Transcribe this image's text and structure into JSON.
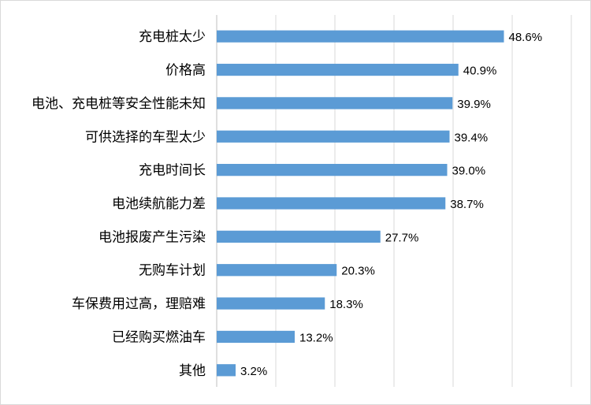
{
  "chart_data": {
    "type": "bar",
    "orientation": "horizontal",
    "categories": [
      "充电桩太少",
      "价格高",
      "电池、充电桩等安全性能未知",
      "可供选择的车型太少",
      "充电时间长",
      "电池续航能力差",
      "电池报废产生污染",
      "无购车计划",
      "车保费用过高，理赔难",
      "已经购买燃油车",
      "其他"
    ],
    "values": [
      48.6,
      40.9,
      39.9,
      39.4,
      39.0,
      38.7,
      27.7,
      20.3,
      18.3,
      13.2,
      3.2
    ],
    "data_labels": [
      "48.6%",
      "40.9%",
      "39.9%",
      "39.4%",
      "39.0%",
      "38.7%",
      "27.7%",
      "20.3%",
      "18.3%",
      "13.2%",
      "3.2%"
    ],
    "unit": "%",
    "xlim": [
      0,
      60
    ],
    "grid": true,
    "bar_color": "#5b9bd5",
    "title": "",
    "xlabel": "",
    "ylabel": ""
  }
}
